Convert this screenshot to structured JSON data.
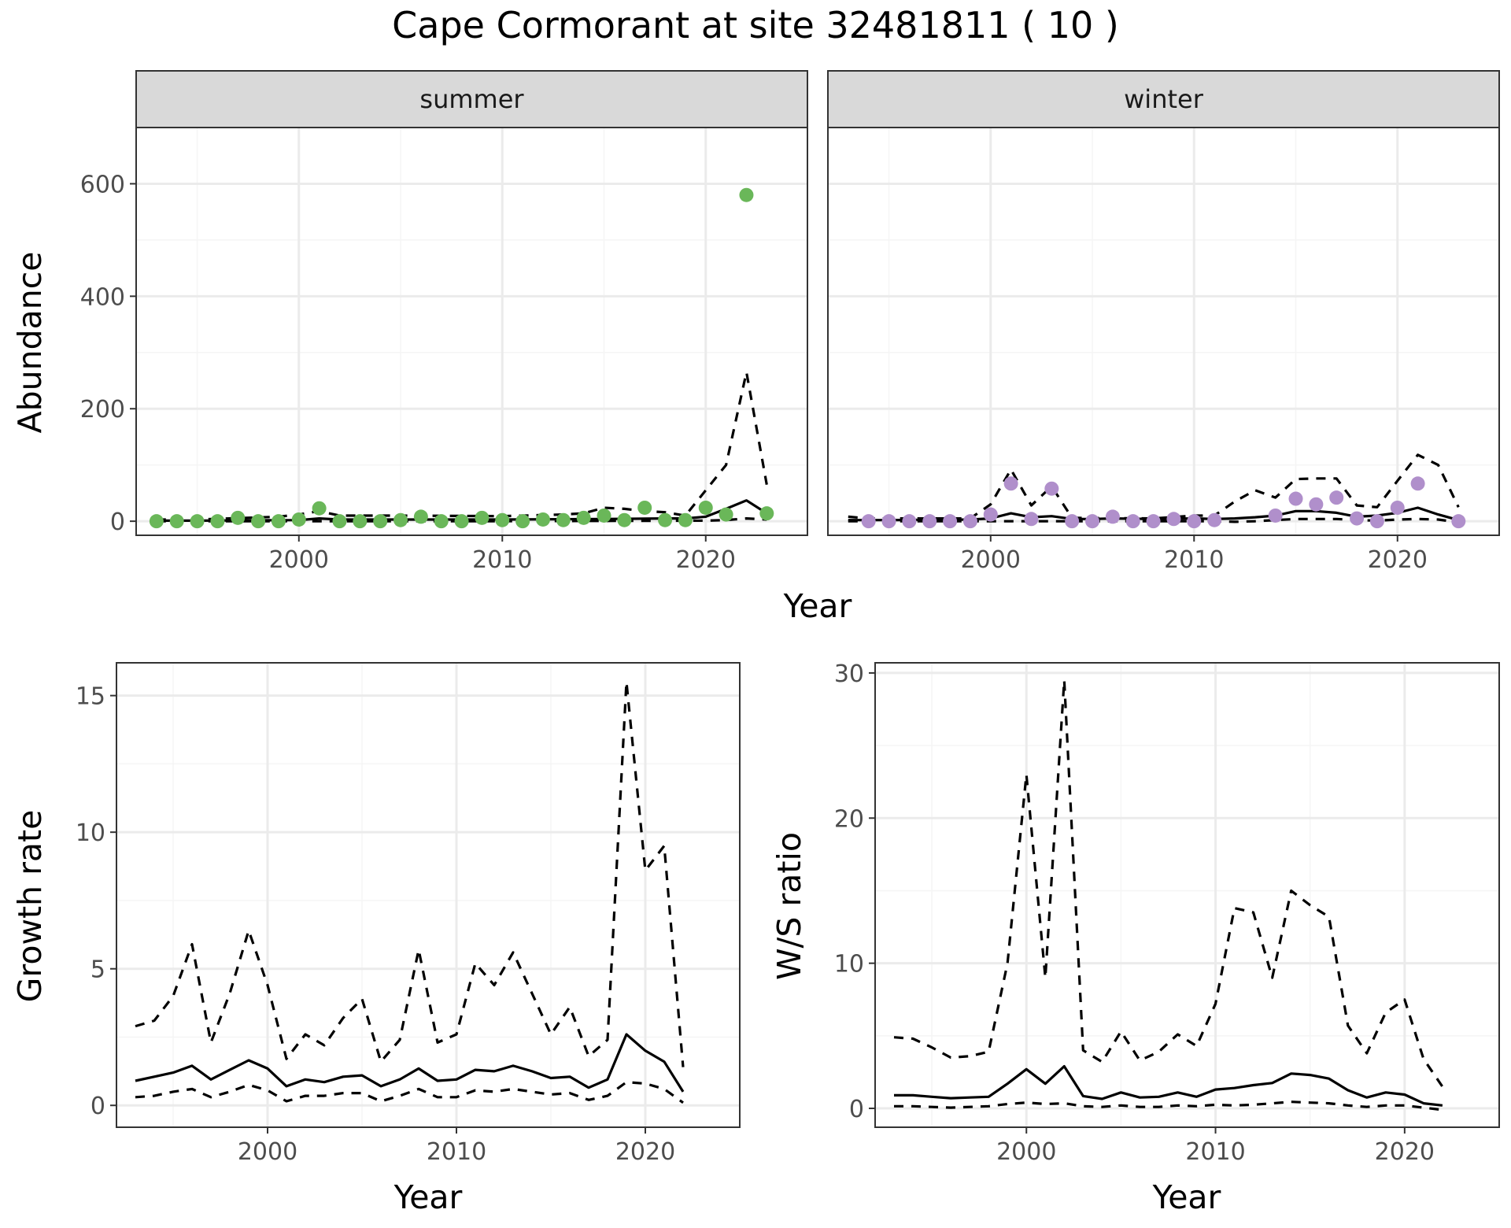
{
  "title": "Cape Cormorant at site 32481811 ( 10 )",
  "colors": {
    "summer_points": "#6ab759",
    "winter_points": "#b08fcb",
    "lines": "#000000",
    "strip_bg": "#d9d9d9",
    "grid_major": "#ebebeb",
    "grid_minor": "#f5f5f5"
  },
  "chart_data": [
    {
      "type": "scatter",
      "panel": "abundance-summer",
      "facet_label": "summer",
      "xlabel": "Year",
      "ylabel": "Abundance",
      "xlim": [
        1992,
        2025
      ],
      "ylim": [
        -25,
        700
      ],
      "xticks": [
        2000,
        2010,
        2020
      ],
      "yticks": [
        0,
        200,
        400,
        600
      ],
      "grid": true,
      "points": {
        "x": [
          1993,
          1994,
          1995,
          1996,
          1997,
          1998,
          1999,
          2000,
          2001,
          2002,
          2003,
          2004,
          2005,
          2006,
          2007,
          2008,
          2009,
          2010,
          2011,
          2012,
          2013,
          2014,
          2015,
          2016,
          2017,
          2018,
          2019,
          2020,
          2021,
          2022,
          2023
        ],
        "y": [
          0,
          0,
          0,
          0,
          6,
          0,
          0,
          3,
          23,
          0,
          0,
          0,
          2,
          8,
          0,
          0,
          6,
          2,
          0,
          3,
          2,
          6,
          10,
          2,
          24,
          2,
          2,
          24,
          12,
          580,
          14
        ]
      },
      "series": [
        {
          "line": "solid",
          "x": [
            1993,
            1995,
            2000,
            2001,
            2002,
            2005,
            2010,
            2015,
            2018,
            2019,
            2020,
            2021,
            2022,
            2023
          ],
          "y": [
            1,
            1,
            2,
            5,
            3,
            3,
            3,
            4,
            5,
            5,
            8,
            22,
            37,
            14
          ]
        },
        {
          "line": "dashed",
          "x": [
            1993,
            1995,
            1999,
            2000,
            2001,
            2002,
            2005,
            2010,
            2013,
            2014,
            2015,
            2016,
            2017,
            2018,
            2019,
            2020,
            2021,
            2022,
            2023
          ],
          "y": [
            3,
            3,
            8,
            12,
            18,
            10,
            10,
            9,
            12,
            14,
            24,
            22,
            18,
            16,
            10,
            55,
            100,
            265,
            65
          ]
        },
        {
          "line": "dashed",
          "x": [
            1993,
            2000,
            2010,
            2020,
            2021,
            2022,
            2023
          ],
          "y": [
            0,
            0,
            0,
            1,
            2,
            5,
            3
          ]
        }
      ]
    },
    {
      "type": "scatter",
      "panel": "abundance-winter",
      "facet_label": "winter",
      "xlabel": "Year",
      "ylabel": "",
      "xlim": [
        1992,
        2025
      ],
      "ylim": [
        -25,
        700
      ],
      "xticks": [
        2000,
        2010,
        2020
      ],
      "yticks": [],
      "grid": true,
      "points": {
        "x": [
          1994,
          1995,
          1996,
          1997,
          1998,
          1999,
          2000,
          2001,
          2002,
          2003,
          2004,
          2005,
          2006,
          2007,
          2008,
          2009,
          2010,
          2011,
          2014,
          2015,
          2016,
          2017,
          2018,
          2019,
          2020,
          2021,
          2023
        ],
        "y": [
          0,
          0,
          0,
          0,
          0,
          0,
          12,
          67,
          4,
          58,
          0,
          0,
          8,
          0,
          0,
          4,
          0,
          2,
          10,
          40,
          30,
          42,
          5,
          0,
          24,
          67,
          0
        ]
      },
      "series": [
        {
          "line": "solid",
          "x": [
            1993,
            1995,
            1999,
            2000,
            2001,
            2002,
            2003,
            2004,
            2005,
            2006,
            2008,
            2010,
            2011,
            2012,
            2013,
            2014,
            2015,
            2016,
            2017,
            2018,
            2019,
            2020,
            2021,
            2022,
            2023
          ],
          "y": [
            2,
            2,
            3,
            5,
            14,
            7,
            9,
            4,
            4,
            5,
            4,
            5,
            4,
            5,
            7,
            10,
            18,
            18,
            15,
            8,
            10,
            15,
            24,
            12,
            2
          ]
        },
        {
          "line": "dashed",
          "x": [
            1993,
            1994,
            1999,
            2000,
            2001,
            2002,
            2003,
            2004,
            2008,
            2010,
            2011,
            2012,
            2013,
            2014,
            2015,
            2016,
            2017,
            2018,
            2019,
            2020,
            2021,
            2022,
            2023
          ],
          "y": [
            8,
            5,
            5,
            30,
            92,
            28,
            62,
            6,
            5,
            10,
            10,
            35,
            55,
            42,
            75,
            76,
            76,
            28,
            25,
            72,
            118,
            100,
            25
          ]
        },
        {
          "line": "dashed",
          "x": [
            1993,
            2000,
            2011,
            2012,
            2013,
            2014,
            2015,
            2016,
            2017,
            2018,
            2019,
            2020,
            2021,
            2022,
            2023
          ],
          "y": [
            0,
            0,
            0,
            -1,
            0,
            2,
            4,
            4,
            4,
            2,
            1,
            3,
            4,
            3,
            -2
          ]
        }
      ]
    },
    {
      "type": "line",
      "panel": "growth-rate",
      "xlabel": "Year",
      "ylabel": "Growth rate",
      "xlim": [
        1992,
        2025
      ],
      "ylim": [
        -0.8,
        16.2
      ],
      "xticks": [
        2000,
        2010,
        2020
      ],
      "yticks": [
        0,
        5,
        10,
        15
      ],
      "grid": true,
      "series": [
        {
          "line": "solid",
          "x": [
            1993,
            1994,
            1995,
            1996,
            1997,
            1998,
            1999,
            2000,
            2001,
            2002,
            2003,
            2004,
            2005,
            2006,
            2007,
            2008,
            2009,
            2010,
            2011,
            2012,
            2013,
            2014,
            2015,
            2016,
            2017,
            2018,
            2019,
            2020,
            2021,
            2022
          ],
          "y": [
            0.9,
            1.05,
            1.2,
            1.45,
            0.95,
            1.3,
            1.65,
            1.35,
            0.7,
            0.95,
            0.85,
            1.05,
            1.1,
            0.7,
            0.95,
            1.35,
            0.9,
            0.95,
            1.3,
            1.25,
            1.45,
            1.25,
            1.0,
            1.05,
            0.65,
            0.95,
            2.6,
            2.0,
            1.6,
            0.5
          ]
        },
        {
          "line": "dashed",
          "x": [
            1993,
            1994,
            1995,
            1996,
            1997,
            1998,
            1999,
            2000,
            2001,
            2002,
            2003,
            2004,
            2005,
            2006,
            2007,
            2008,
            2009,
            2010,
            2011,
            2012,
            2013,
            2014,
            2015,
            2016,
            2017,
            2018,
            2019,
            2020,
            2021,
            2022
          ],
          "y": [
            2.9,
            3.1,
            4.0,
            5.9,
            2.3,
            4.1,
            6.4,
            4.4,
            1.7,
            2.6,
            2.2,
            3.2,
            3.9,
            1.6,
            2.4,
            5.7,
            2.3,
            2.6,
            5.2,
            4.4,
            5.6,
            4.1,
            2.6,
            3.6,
            1.8,
            2.4,
            15.5,
            8.6,
            9.5,
            1.4
          ]
        },
        {
          "line": "dashed",
          "x": [
            1993,
            1994,
            1995,
            1996,
            1997,
            1998,
            1999,
            2000,
            2001,
            2002,
            2003,
            2004,
            2005,
            2006,
            2007,
            2008,
            2009,
            2010,
            2011,
            2012,
            2013,
            2014,
            2015,
            2016,
            2017,
            2018,
            2019,
            2020,
            2021,
            2022
          ],
          "y": [
            0.3,
            0.35,
            0.5,
            0.6,
            0.3,
            0.5,
            0.75,
            0.55,
            0.15,
            0.35,
            0.35,
            0.45,
            0.45,
            0.15,
            0.35,
            0.6,
            0.3,
            0.3,
            0.55,
            0.5,
            0.6,
            0.5,
            0.4,
            0.45,
            0.2,
            0.35,
            0.85,
            0.8,
            0.6,
            0.1
          ]
        }
      ]
    },
    {
      "type": "line",
      "panel": "ws-ratio",
      "xlabel": "Year",
      "ylabel": "W/S ratio",
      "xlim": [
        1992,
        2025
      ],
      "ylim": [
        -1.3,
        30.7
      ],
      "xticks": [
        2000,
        2010,
        2020
      ],
      "yticks": [
        0,
        10,
        20,
        30
      ],
      "grid": true,
      "series": [
        {
          "line": "solid",
          "x": [
            1993,
            1994,
            1995,
            1996,
            1997,
            1998,
            1999,
            2000,
            2001,
            2002,
            2003,
            2004,
            2005,
            2006,
            2007,
            2008,
            2009,
            2010,
            2011,
            2012,
            2013,
            2014,
            2015,
            2016,
            2017,
            2018,
            2019,
            2020,
            2021,
            2022
          ],
          "y": [
            0.9,
            0.9,
            0.8,
            0.7,
            0.75,
            0.8,
            1.7,
            2.7,
            1.7,
            2.9,
            0.85,
            0.65,
            1.1,
            0.75,
            0.8,
            1.1,
            0.8,
            1.3,
            1.4,
            1.6,
            1.75,
            2.4,
            2.3,
            2.05,
            1.25,
            0.75,
            1.1,
            0.95,
            0.35,
            0.2
          ]
        },
        {
          "line": "dashed",
          "x": [
            1993,
            1994,
            1995,
            1996,
            1997,
            1998,
            1999,
            2000,
            2001,
            2002,
            2003,
            2004,
            2005,
            2006,
            2007,
            2008,
            2009,
            2010,
            2011,
            2012,
            2013,
            2014,
            2015,
            2016,
            2017,
            2018,
            2019,
            2020,
            2021,
            2022
          ],
          "y": [
            4.9,
            4.8,
            4.2,
            3.5,
            3.6,
            3.9,
            10,
            23,
            9,
            29.5,
            4,
            3.2,
            5.3,
            3.3,
            3.9,
            5.1,
            4.3,
            7.2,
            13.8,
            13.5,
            9,
            15,
            14,
            13.2,
            5.7,
            3.8,
            6.6,
            7.5,
            3.4,
            1.5
          ]
        },
        {
          "line": "dashed",
          "x": [
            1993,
            1994,
            1995,
            1996,
            1997,
            1998,
            1999,
            2000,
            2001,
            2002,
            2003,
            2004,
            2005,
            2006,
            2007,
            2008,
            2009,
            2010,
            2011,
            2012,
            2013,
            2014,
            2015,
            2016,
            2017,
            2018,
            2019,
            2020,
            2021,
            2022
          ],
          "y": [
            0.15,
            0.15,
            0.1,
            0.05,
            0.1,
            0.15,
            0.3,
            0.4,
            0.3,
            0.35,
            0.15,
            0.1,
            0.2,
            0.1,
            0.1,
            0.2,
            0.15,
            0.25,
            0.2,
            0.25,
            0.35,
            0.45,
            0.4,
            0.35,
            0.2,
            0.1,
            0.2,
            0.2,
            0.05,
            -0.1
          ]
        }
      ]
    }
  ]
}
